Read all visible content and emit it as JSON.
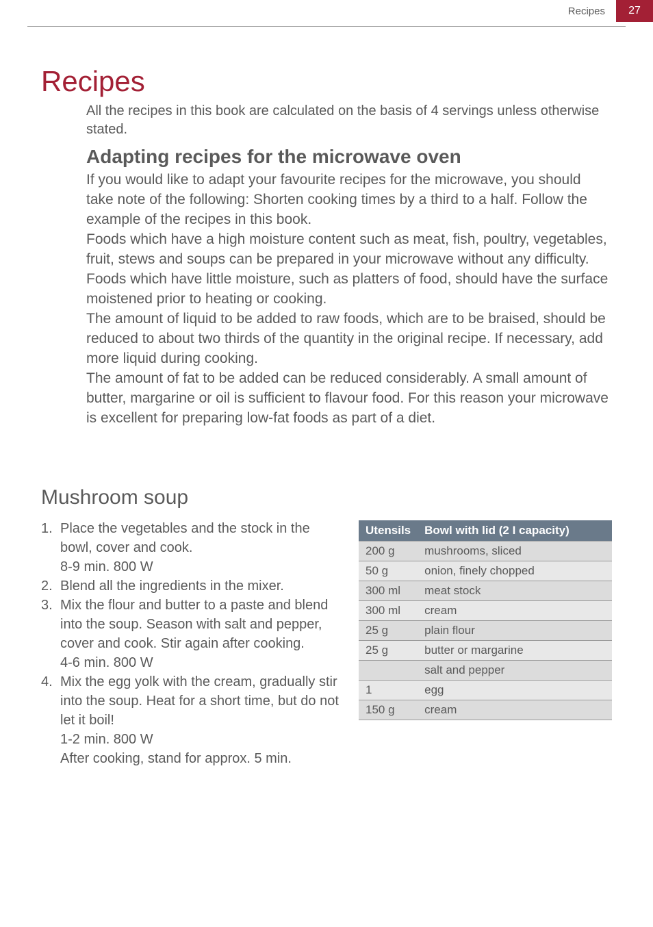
{
  "header": {
    "label": "Recipes",
    "page_number": "27"
  },
  "main": {
    "title": "Recipes",
    "intro": "All the recipes in this book are calculated on the basis of 4 servings unless otherwise stated.",
    "section_title": "Adapting recipes for the microwave oven",
    "paragraphs": [
      "If you would like to adapt your favourite recipes for the microwave, you should take note of the following: Shorten cooking times by a third to a half. Follow the example of the recipes in this book.",
      "Foods which have a high moisture content such as meat, fish, poultry, vegetables, fruit, stews and soups can be prepared in your microwave without any difficulty.",
      "Foods which have little moisture, such as platters of food, should have the surface moistened prior to heating or cooking.",
      "The amount of liquid to be added to raw foods, which are to be braised, should be reduced to about two thirds of the quantity in the original recipe. If necessary, add more liquid during cooking.",
      "The amount of fat to be added can be reduced considerably. A small amount of butter, margarine or oil is sufficient to flavour food. For this reason your microwave is excellent for preparing low-fat foods as part of a diet."
    ]
  },
  "recipe": {
    "title": "Mushroom soup",
    "steps": [
      {
        "text": "Place the vegetables and the stock in the bowl, cover and cook.",
        "timing": "8-9 min.    800 W"
      },
      {
        "text": "Blend all the ingredients in the mixer.",
        "timing": ""
      },
      {
        "text": "Mix the flour and butter to a paste and blend into the soup. Season with salt and pepper, cover and cook. Stir again after cooking.",
        "timing": "4-6 min.    800 W"
      },
      {
        "text": "Mix the egg yolk with the cream, gradually stir into the soup. Heat for a short time, but do not let it boil!",
        "timing": "1-2 min.    800 W",
        "after": "After cooking, stand for approx. 5 min."
      }
    ],
    "table": {
      "header_utensils": "Utensils",
      "header_item": "Bowl with lid (2 I capacity)",
      "rows": [
        {
          "qty": "200 g",
          "item": "mushrooms, sliced"
        },
        {
          "qty": "50 g",
          "item": "onion, finely chopped"
        },
        {
          "qty": "300 ml",
          "item": "meat stock"
        },
        {
          "qty": "300 ml",
          "item": "cream"
        },
        {
          "qty": "25 g",
          "item": "plain flour"
        },
        {
          "qty": "25 g",
          "item": "butter or margarine"
        },
        {
          "qty": "",
          "item": "salt and pepper"
        },
        {
          "qty": "1",
          "item": "egg"
        },
        {
          "qty": "150 g",
          "item": "cream"
        }
      ]
    }
  },
  "colors": {
    "accent": "#a32035",
    "table_header_bg": "#6a7a8a",
    "text": "#5a5a5a",
    "row_even": "#e8e8e8",
    "row_odd": "#dcdcdc"
  }
}
